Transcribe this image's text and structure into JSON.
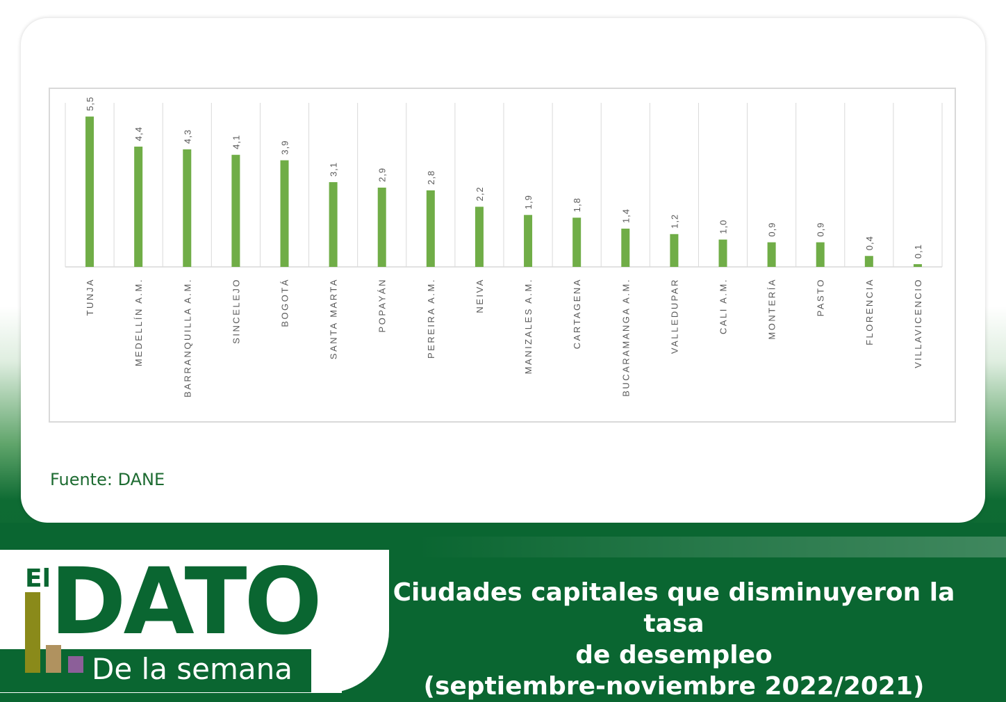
{
  "source": "Fuente: DANE",
  "logo": {
    "el": "El",
    "dato": "DATO",
    "subtitle": "De la semana"
  },
  "headline": {
    "line1": "Ciudades capitales que disminuyeron la tasa",
    "line2": "de desempleo",
    "line3": "(septiembre-noviembre 2022/2021)"
  },
  "colors": {
    "bar": "#70ad47",
    "brand_green": "#0a6631",
    "grid": "#d9d9d9",
    "label": "#595959"
  },
  "chart_data": {
    "type": "bar",
    "categories": [
      "TUNJA",
      "MEDELLÍN A.M.",
      "BARRANQUILLA A.M.",
      "SINCELEJO",
      "BOGOTÁ",
      "SANTA MARTA",
      "POPAYÁN",
      "PEREIRA A.M.",
      "NEIVA",
      "MANIZALES A.M.",
      "CARTAGENA",
      "BUCARAMANGA A.M.",
      "VALLEDUPAR",
      "CALI A.M.",
      "MONTERÍA",
      "PASTO",
      "FLORENCIA",
      "VILLAVICENCIO"
    ],
    "values": [
      5.5,
      4.4,
      4.3,
      4.1,
      3.9,
      3.1,
      2.9,
      2.8,
      2.2,
      1.9,
      1.8,
      1.4,
      1.2,
      1.0,
      0.9,
      0.9,
      0.4,
      0.1
    ],
    "data_labels": [
      "5,5",
      "4,4",
      "4,3",
      "4,1",
      "3,9",
      "3,1",
      "2,9",
      "2,8",
      "2,2",
      "1,9",
      "1,8",
      "1,4",
      "1,2",
      "1,0",
      "0,9",
      "0,9",
      "0,4",
      "0,1"
    ],
    "ylim": [
      0,
      6
    ],
    "grid": true,
    "legend": "none",
    "label_orientation": "vertical"
  }
}
